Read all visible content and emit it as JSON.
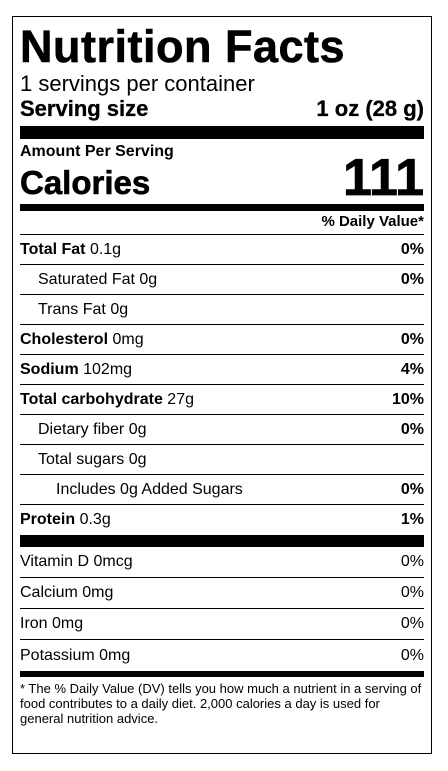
{
  "label": {
    "title": "Nutrition Facts",
    "servings_per_container": "1 servings per container",
    "serving_size_label": "Serving size",
    "serving_size_value": "1 oz (28 g)",
    "amount_per_serving": "Amount Per Serving",
    "calories_label": "Calories",
    "calories_value": "111",
    "daily_value_header": "% Daily Value*"
  },
  "nutrients": [
    {
      "name": "Total Fat",
      "amount": "0.1g",
      "pct": "0%"
    },
    {
      "name": "Saturated Fat",
      "amount": "0g",
      "pct": "0%"
    },
    {
      "name": "Trans Fat",
      "amount": "0g",
      "pct": ""
    },
    {
      "name": "Cholesterol",
      "amount": "0mg",
      "pct": "0%"
    },
    {
      "name": "Sodium",
      "amount": "102mg",
      "pct": "4%"
    },
    {
      "name": "Total carbohydrate",
      "amount": "27g",
      "pct": "10%"
    },
    {
      "name": "Dietary fiber",
      "amount": "0g",
      "pct": "0%"
    },
    {
      "name": "Total sugars",
      "amount": "0g",
      "pct": ""
    },
    {
      "name": "Includes 0g Added Sugars",
      "amount": "",
      "pct": "0%"
    },
    {
      "name": "Protein",
      "amount": "0.3g",
      "pct": "1%"
    }
  ],
  "vitamins": [
    {
      "text": "Vitamin D 0mcg",
      "pct": "0%"
    },
    {
      "text": "Calcium 0mg",
      "pct": "0%"
    },
    {
      "text": "Iron 0mg",
      "pct": "0%"
    },
    {
      "text": "Potassium 0mg",
      "pct": "0%"
    }
  ],
  "footnote": "* The % Daily Value (DV) tells you how much a nutrient in a serving of food contributes to a daily diet. 2,000 calories a day is used for general nutrition advice."
}
